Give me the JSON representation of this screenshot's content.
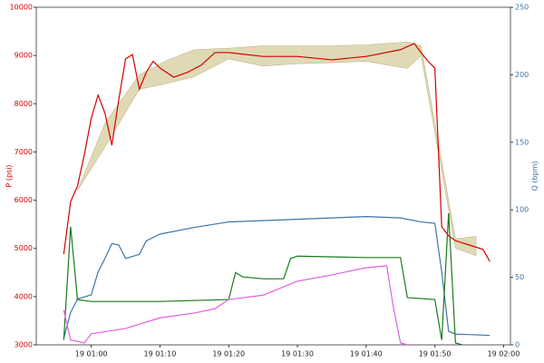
{
  "chart_data": {
    "type": "line",
    "ylabel": "P (psi)",
    "y2label": "Q (bpm)",
    "xlim": [
      "19 00:52",
      "19 02:01"
    ],
    "xticks": [
      "19 01:00",
      "19 01:10",
      "19 01:20",
      "19 01:30",
      "19 01:40",
      "19 01:50",
      "19 02:00"
    ],
    "ylim": [
      3000,
      10000
    ],
    "yticks": [
      3000,
      4000,
      5000,
      6000,
      7000,
      8000,
      9000,
      10000
    ],
    "y2lim": [
      0,
      250
    ],
    "y2ticks": [
      0,
      50,
      100,
      150,
      200,
      250
    ],
    "ycolor": "#d40000",
    "y2color": "#3a75a8",
    "band": {
      "color": "#d9d2a8",
      "x": [
        "19 00:58",
        "19 01:02",
        "19 01:07",
        "19 01:11",
        "19 01:15",
        "19 01:20",
        "19 01:25",
        "19 01:30",
        "19 01:35",
        "19 01:40",
        "19 01:46",
        "19 01:48",
        "19 01:53",
        "19 01:56"
      ],
      "lower": [
        6200,
        7100,
        8300,
        8420,
        8560,
        8930,
        8780,
        8830,
        8850,
        8880,
        8730,
        9000,
        5000,
        4850
      ],
      "upper": [
        6200,
        7600,
        8600,
        8900,
        9120,
        9150,
        9200,
        9200,
        9200,
        9220,
        9280,
        9200,
        5200,
        5250
      ]
    },
    "series": [
      {
        "color": "#d40000",
        "axis": "y",
        "x": [
          "19 00:56",
          "19 00:57",
          "19 00:58",
          "19 00:59",
          "19 01:00",
          "19 01:01",
          "19 01:02",
          "19 01:03",
          "19 01:04",
          "19 01:05",
          "19 01:06",
          "19 01:07",
          "19 01:08",
          "19 01:09",
          "19 01:10",
          "19 01:12",
          "19 01:14",
          "19 01:16",
          "19 01:18",
          "19 01:20",
          "19 01:25",
          "19 01:30",
          "19 01:35",
          "19 01:40",
          "19 01:45",
          "19 01:47",
          "19 01:48",
          "19 01:49",
          "19 01:50",
          "19 01:51",
          "19 01:52",
          "19 01:53",
          "19 01:55",
          "19 01:57",
          "19 01:58"
        ],
        "values": [
          4880,
          5970,
          6290,
          6950,
          7700,
          8180,
          7800,
          7140,
          8080,
          8930,
          9020,
          8300,
          8650,
          8880,
          8740,
          8550,
          8650,
          8800,
          9060,
          9060,
          8980,
          8980,
          8910,
          8980,
          9120,
          9250,
          9060,
          8880,
          8740,
          5450,
          5260,
          5160,
          5070,
          4980,
          4730
        ]
      },
      {
        "color": "#3a75a8",
        "axis": "y2",
        "x": [
          "19 00:56",
          "19 00:57",
          "19 00:58",
          "19 01:00",
          "19 01:01",
          "19 01:02",
          "19 01:03",
          "19 01:04",
          "19 01:05",
          "19 01:07",
          "19 01:08",
          "19 01:10",
          "19 01:15",
          "19 01:20",
          "19 01:30",
          "19 01:40",
          "19 01:45",
          "19 01:48",
          "19 01:50",
          "19 01:51",
          "19 01:52",
          "19 01:53",
          "19 01:58"
        ],
        "values": [
          5,
          24,
          34,
          37,
          54,
          64,
          75,
          74,
          64,
          67,
          77,
          82,
          87,
          91,
          93,
          95,
          94,
          91,
          90,
          54,
          10,
          8,
          7
        ]
      },
      {
        "color": "#1a7a1a",
        "axis": "y",
        "x": [
          "19 00:56",
          "19 00:57",
          "19 00:58",
          "19 01:00",
          "19 01:10",
          "19 01:20",
          "19 01:21",
          "19 01:22",
          "19 01:25",
          "19 01:28",
          "19 01:29",
          "19 01:30",
          "19 01:40",
          "19 01:45",
          "19 01:46",
          "19 01:50",
          "19 01:51",
          "19 01:52",
          "19 01:53",
          "19 01:54"
        ],
        "values": [
          3100,
          5450,
          3940,
          3900,
          3900,
          3940,
          4500,
          4410,
          4370,
          4370,
          4790,
          4840,
          4810,
          4810,
          3980,
          3940,
          3100,
          5730,
          3040,
          3000
        ]
      },
      {
        "color": "#e060e0",
        "axis": "y",
        "x": [
          "19 00:56",
          "19 00:57",
          "19 00:59",
          "19 01:00",
          "19 01:05",
          "19 01:10",
          "19 01:15",
          "19 01:18",
          "19 01:20",
          "19 01:25",
          "19 01:30",
          "19 01:35",
          "19 01:40",
          "19 01:43",
          "19 01:44",
          "19 01:45",
          "19 01:46"
        ],
        "values": [
          3720,
          3100,
          3040,
          3230,
          3340,
          3560,
          3660,
          3750,
          3940,
          4030,
          4320,
          4450,
          4600,
          4640,
          3750,
          3040,
          3000
        ]
      }
    ]
  }
}
